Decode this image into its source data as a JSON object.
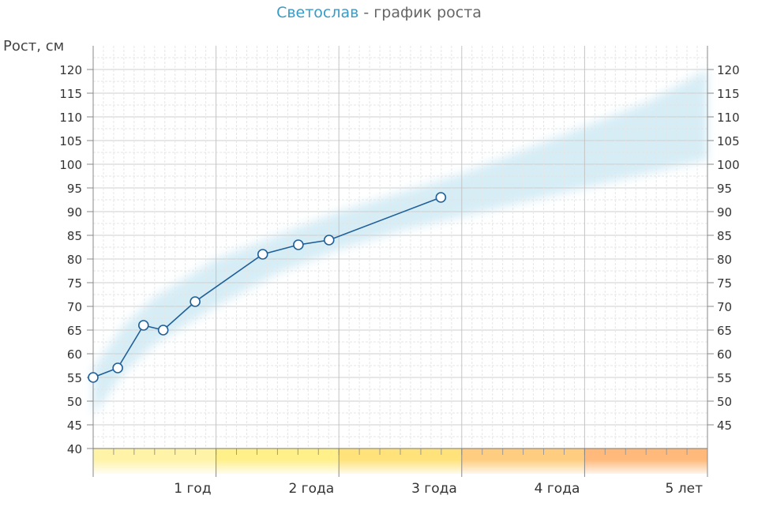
{
  "header": {
    "name": "Светослав",
    "separator": " - ",
    "subtitle": "график роста"
  },
  "chart_data": {
    "type": "line",
    "title": "Светослав - график роста",
    "ylabel": "Рост, см",
    "xlabel": "",
    "xlim": [
      0,
      5
    ],
    "ylim": [
      40,
      120
    ],
    "y_ticks": [
      40,
      45,
      50,
      55,
      60,
      65,
      70,
      75,
      80,
      85,
      90,
      95,
      100,
      105,
      110,
      115,
      120
    ],
    "y_ticks_right": [
      45,
      50,
      55,
      60,
      65,
      70,
      75,
      80,
      85,
      90,
      95,
      100,
      105,
      110,
      115,
      120
    ],
    "x_ticks": [
      {
        "value": 1,
        "label": "1 год"
      },
      {
        "value": 2,
        "label": "2 года"
      },
      {
        "value": 3,
        "label": "3 года"
      },
      {
        "value": 4,
        "label": "4 года"
      },
      {
        "value": 5,
        "label": "5 лет"
      }
    ],
    "grid": true,
    "series": [
      {
        "x": [
          0,
          0.2,
          0.41,
          0.57,
          0.83,
          1.38,
          1.67,
          1.92,
          2.83
        ],
        "y": [
          55,
          57,
          66,
          65,
          71,
          81,
          83,
          84,
          93
        ],
        "color": "#1f5f99"
      }
    ],
    "norm_band": {
      "color": "#cfeaf5",
      "x": [
        0,
        0.25,
        0.5,
        1,
        1.5,
        2,
        2.5,
        3,
        3.5,
        4,
        4.5,
        5
      ],
      "low": [
        47,
        56,
        62,
        70,
        77,
        82,
        86,
        89,
        92,
        95,
        98,
        101
      ],
      "high": [
        57,
        66,
        72,
        80,
        85,
        90,
        94,
        98,
        103,
        108,
        113,
        120
      ]
    },
    "age_bands": [
      {
        "from": 0,
        "to": 1,
        "color": "#fff3a8"
      },
      {
        "from": 1,
        "to": 2,
        "color": "#fff08a"
      },
      {
        "from": 2,
        "to": 3,
        "color": "#ffe27a"
      },
      {
        "from": 3,
        "to": 4,
        "color": "#ffcd80"
      },
      {
        "from": 4,
        "to": 5,
        "color": "#ffb97a"
      }
    ]
  }
}
